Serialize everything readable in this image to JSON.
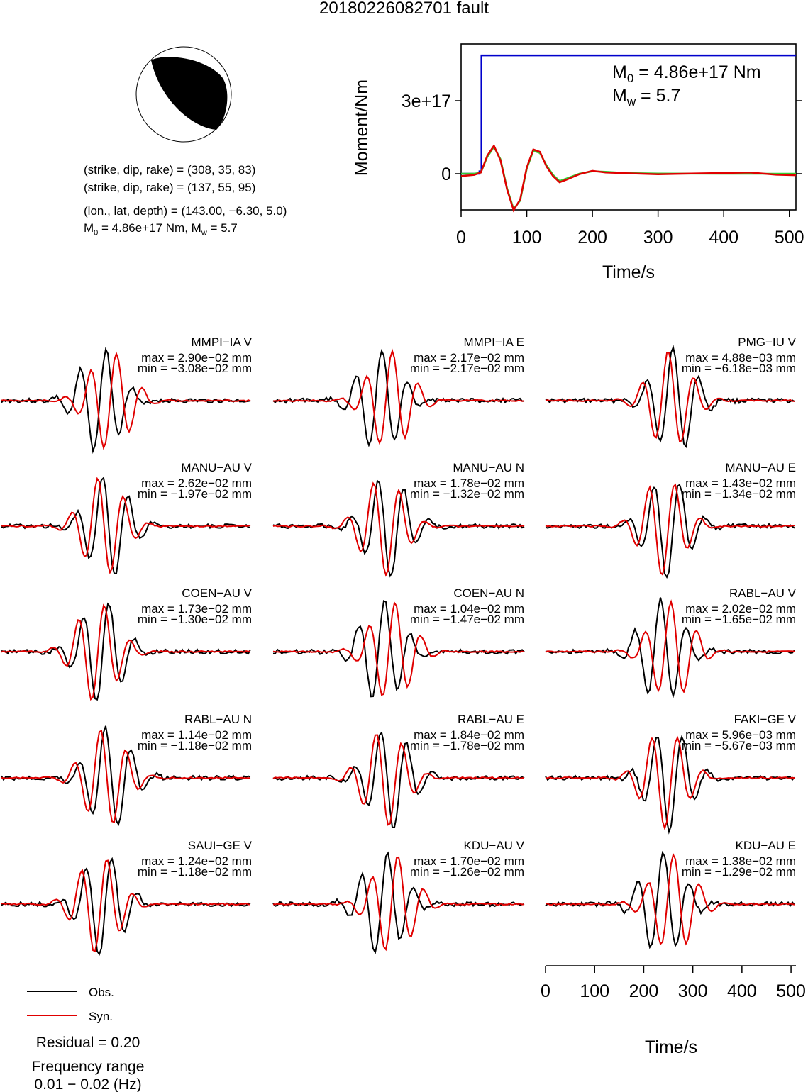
{
  "title": "20180226082701 fault",
  "focal": {
    "plane1": "(strike, dip, rake) = (308, 35, 83)",
    "plane2": "(strike, dip, rake) = (137, 55, 95)",
    "location": "(lon., lat, depth) = (143.00, −6.30, 5.0)",
    "magnitude_line": "M0 = 4.86e+17 Nm, Mw = 5.7"
  },
  "moment_panel": {
    "m0_text": "M0 = 4.86e+17 Nm",
    "mw_text": "Mw = 5.7",
    "ylabel": "Moment/Nm",
    "xlabel": "Time/s",
    "yticks": [
      "0",
      "3e+17"
    ],
    "xticks": [
      "0",
      "100",
      "200",
      "300",
      "400",
      "500"
    ]
  },
  "chart_data": [
    {
      "type": "line",
      "title": "",
      "xlabel": "Time/s",
      "ylabel": "Moment/Nm",
      "xlim": [
        0,
        510
      ],
      "series": [
        {
          "color": "#0000cc",
          "x": [
            0,
            28,
            28,
            31,
            31,
            510
          ],
          "y": [
            0,
            0,
            1e+16,
            1e+16,
            4.86e+17,
            4.86e+17
          ]
        },
        {
          "color": "#33cc33",
          "x": [
            0,
            20,
            30,
            40,
            50,
            60,
            70,
            80,
            90,
            100,
            110,
            120,
            130,
            140,
            150,
            160,
            180,
            200,
            220,
            250,
            300,
            400,
            510
          ],
          "y": [
            0,
            0,
            5000000000000000.0,
            7e+16,
            1.1e+17,
            6e+16,
            -6e+16,
            -1.45e+17,
            -1.1e+17,
            2e+16,
            9.5e+16,
            8.5e+16,
            3.5e+16,
            -5000000000000000.0,
            -3e+16,
            -2e+16,
            0,
            1e+16,
            8000000000000000.0,
            3000000000000000.0,
            1000000000000000.0,
            0,
            0
          ]
        },
        {
          "color": "#e00000",
          "x": [
            0,
            20,
            30,
            40,
            50,
            60,
            70,
            80,
            90,
            100,
            110,
            120,
            130,
            140,
            150,
            160,
            180,
            200,
            220,
            250,
            300,
            350,
            400,
            440,
            480,
            510
          ],
          "y": [
            -1e+16,
            -5000000000000000.0,
            5000000000000000.0,
            7.5e+16,
            1.15e+17,
            5.5e+16,
            -6.5e+16,
            -1.5e+17,
            -1.05e+17,
            2.5e+16,
            1e+17,
            9e+16,
            3e+16,
            -1e+16,
            -3.5e+16,
            -2.5e+16,
            -2000000000000000.0,
            1.2e+16,
            5000000000000000.0,
            2000000000000000.0,
            -2000000000000000.0,
            1000000000000000.0,
            3000000000000000.0,
            5000000000000000.0,
            -4000000000000000.0,
            -6000000000000000.0
          ]
        }
      ]
    }
  ],
  "traces": [
    {
      "label": "MMPI−IA V",
      "max": "max = 2.90e−02 mm",
      "min": "min = −3.08e−02 mm"
    },
    {
      "label": "MMPI−IA E",
      "max": "max = 2.17e−02 mm",
      "min": "min = −2.17e−02 mm"
    },
    {
      "label": "PMG−IU V",
      "max": "max = 4.88e−03 mm",
      "min": "min = −6.18e−03 mm"
    },
    {
      "label": "MANU−AU V",
      "max": "max = 2.62e−02 mm",
      "min": "min = −1.97e−02 mm"
    },
    {
      "label": "MANU−AU N",
      "max": "max = 1.78e−02 mm",
      "min": "min = −1.32e−02 mm"
    },
    {
      "label": "MANU−AU E",
      "max": "max = 1.43e−02 mm",
      "min": "min = −1.34e−02 mm"
    },
    {
      "label": "COEN−AU V",
      "max": "max = 1.73e−02 mm",
      "min": "min = −1.30e−02 mm"
    },
    {
      "label": "COEN−AU N",
      "max": "max = 1.04e−02 mm",
      "min": "min = −1.47e−02 mm"
    },
    {
      "label": "RABL−AU V",
      "max": "max = 2.02e−02 mm",
      "min": "min = −1.65e−02 mm"
    },
    {
      "label": "RABL−AU N",
      "max": "max = 1.14e−02 mm",
      "min": "min = −1.18e−02 mm"
    },
    {
      "label": "RABL−AU E",
      "max": "max = 1.84e−02 mm",
      "min": "min = −1.78e−02 mm"
    },
    {
      "label": "FAKI−GE V",
      "max": "max = 5.96e−03 mm",
      "min": "min = −5.67e−03 mm"
    },
    {
      "label": "SAUI−GE V",
      "max": "max = 1.24e−02 mm",
      "min": "min = −1.18e−02 mm"
    },
    {
      "label": "KDU−AU V",
      "max": "max = 1.70e−02 mm",
      "min": "min = −1.26e−02 mm"
    },
    {
      "label": "KDU−AU E",
      "max": "max = 1.38e−02 mm",
      "min": "min = −1.29e−02 mm"
    }
  ],
  "bottom_axis": {
    "xlabel": "Time/s",
    "xticks": [
      "0",
      "100",
      "200",
      "300",
      "400",
      "500"
    ]
  },
  "legend": {
    "obs": "Obs.",
    "syn": "Syn.",
    "obs_color": "#000000",
    "syn_color": "#e00000"
  },
  "residual": "Residual = 0.20",
  "freq_title": "Frequency range",
  "freq_value": "0.01 − 0.02 (Hz)"
}
